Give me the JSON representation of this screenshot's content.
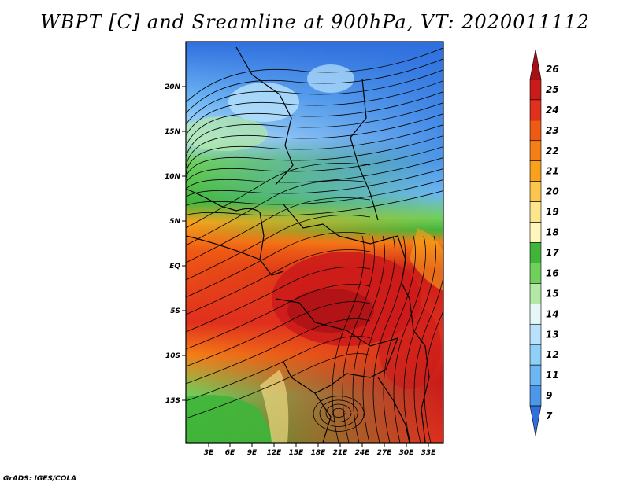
{
  "title": "WBPT [C] and Sreamline at 900hPa, VT: 2020011112",
  "credit": "GrADS: IGES/COLA",
  "map": {
    "lon_labels": [
      "3E",
      "6E",
      "9E",
      "12E",
      "15E",
      "18E",
      "21E",
      "24E",
      "27E",
      "30E",
      "33E"
    ],
    "lat_labels": [
      "20N",
      "15N",
      "10N",
      "5N",
      "EQ",
      "5S",
      "10S",
      "15S"
    ]
  },
  "colorbar": {
    "levels": [
      {
        "label": "26",
        "color": "#a50f15"
      },
      {
        "label": "25",
        "color": "#cb1a1a"
      },
      {
        "label": "24",
        "color": "#e0301e"
      },
      {
        "label": "23",
        "color": "#ef5a14"
      },
      {
        "label": "22",
        "color": "#f57f17"
      },
      {
        "label": "21",
        "color": "#f9a11b"
      },
      {
        "label": "20",
        "color": "#fcc64c"
      },
      {
        "label": "19",
        "color": "#fde58c"
      },
      {
        "label": "18",
        "color": "#fff6bd"
      },
      {
        "label": "17",
        "color": "#3fb53a"
      },
      {
        "label": "16",
        "color": "#6fd05b"
      },
      {
        "label": "15",
        "color": "#b2eaa5"
      },
      {
        "label": "14",
        "color": "#e5f7f7"
      },
      {
        "label": "13",
        "color": "#b8e2fb"
      },
      {
        "label": "12",
        "color": "#8fd0f7"
      },
      {
        "label": "11",
        "color": "#6db6f4"
      },
      {
        "label": "9",
        "color": "#4d97ea"
      },
      {
        "label": "7",
        "color": "#2f6fde"
      }
    ]
  }
}
